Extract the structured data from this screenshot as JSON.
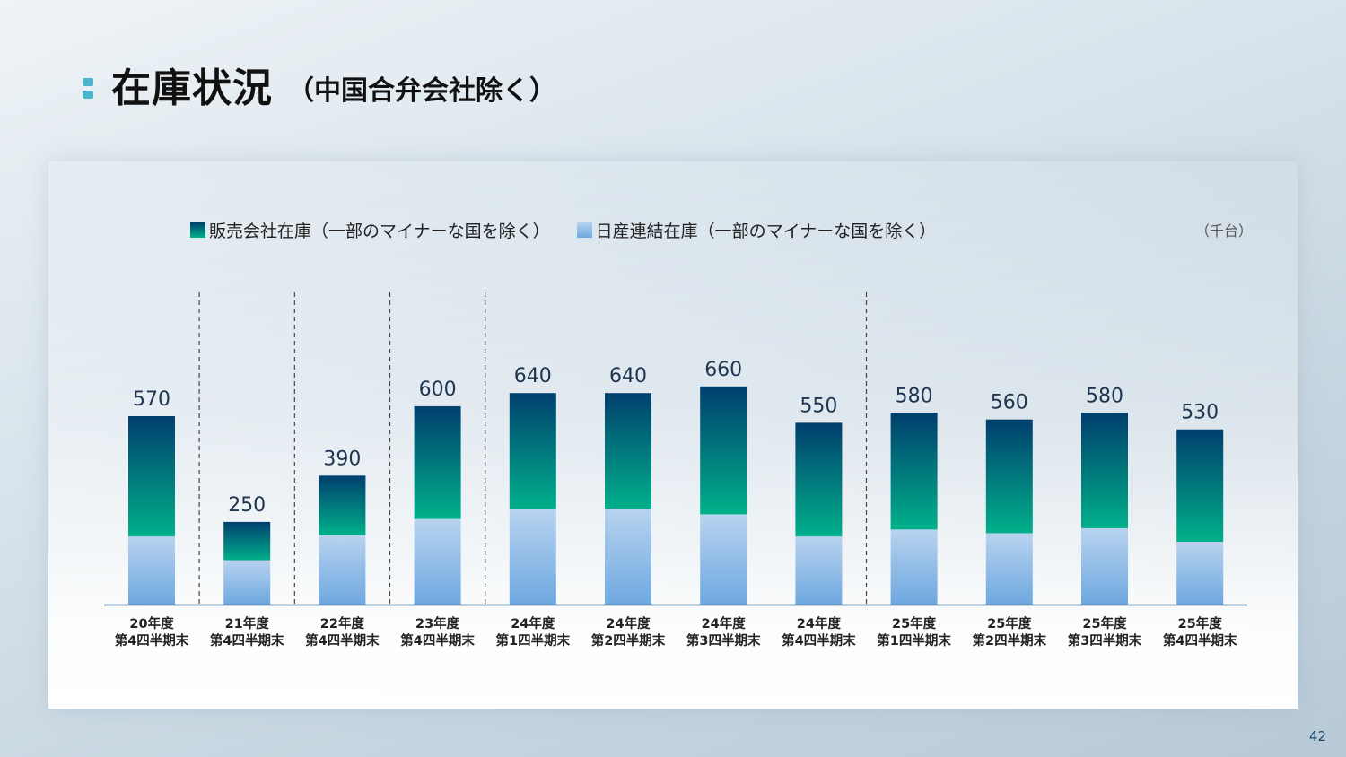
{
  "title": {
    "main": "在庫状況",
    "sub": "（中国合弁会社除く）"
  },
  "unit": "（千台）",
  "page_number": "42",
  "colors": {
    "dealer_top": "#003f6e",
    "dealer_bottom": "#00b08a",
    "nissan_top": "#b8d3ef",
    "nissan_bottom": "#6ea8e0",
    "axis": "#3a5f7d"
  },
  "chart_data": {
    "type": "bar",
    "stacked": true,
    "categories": [
      [
        "20年度",
        "第4四半期末"
      ],
      [
        "21年度",
        "第4四半期末"
      ],
      [
        "22年度",
        "第4四半期末"
      ],
      [
        "23年度",
        "第4四半期末"
      ],
      [
        "24年度",
        "第1四半期末"
      ],
      [
        "24年度",
        "第2四半期末"
      ],
      [
        "24年度",
        "第3四半期末"
      ],
      [
        "24年度",
        "第4四半期末"
      ],
      [
        "25年度",
        "第1四半期末"
      ],
      [
        "25年度",
        "第2四半期末"
      ],
      [
        "25年度",
        "第3四半期末"
      ],
      [
        "25年度",
        "第4四半期末"
      ]
    ],
    "series": [
      {
        "name": "日産連結在庫（一部のマイナーな国を除く）",
        "values": [
          206,
          134,
          210,
          259,
          288,
          290,
          273,
          206,
          227,
          216,
          231,
          190
        ]
      },
      {
        "name": "販売会社在庫（一部のマイナーな国を除く）",
        "values": [
          364,
          116,
          180,
          341,
          352,
          350,
          387,
          344,
          353,
          344,
          349,
          340
        ]
      }
    ],
    "totals": [
      570,
      250,
      390,
      600,
      640,
      640,
      660,
      550,
      580,
      560,
      580,
      530
    ],
    "ylim": [
      0,
      700
    ],
    "legend_position": "top",
    "separators_after_index": [
      0,
      1,
      2,
      3,
      7
    ]
  }
}
